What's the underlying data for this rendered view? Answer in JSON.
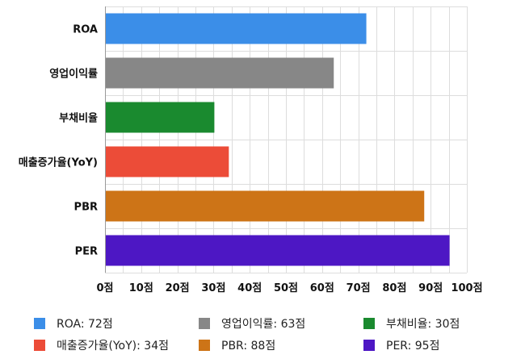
{
  "chart_data": {
    "type": "bar",
    "orientation": "horizontal",
    "categories": [
      "ROA",
      "영업이익률",
      "부채비율",
      "매출증가율(YoY)",
      "PBR",
      "PER"
    ],
    "values": [
      72,
      63,
      30,
      34,
      88,
      95
    ],
    "colors": [
      "#3b8ee8",
      "#878787",
      "#1a8a2f",
      "#ec4c38",
      "#cd7417",
      "#4d17c4"
    ],
    "xlim": [
      0,
      100
    ],
    "xticks": [
      "0점",
      "10점",
      "20점",
      "30점",
      "40점",
      "50점",
      "60점",
      "70점",
      "80점",
      "90점",
      "100점"
    ],
    "grid": true,
    "legend_position": "bottom",
    "legend": [
      "ROA: 72점",
      "매출증가율(YoY): 34점",
      "영업이익률: 63점",
      "PBR: 88점",
      "부채비율: 30점",
      "PER: 95점"
    ]
  }
}
